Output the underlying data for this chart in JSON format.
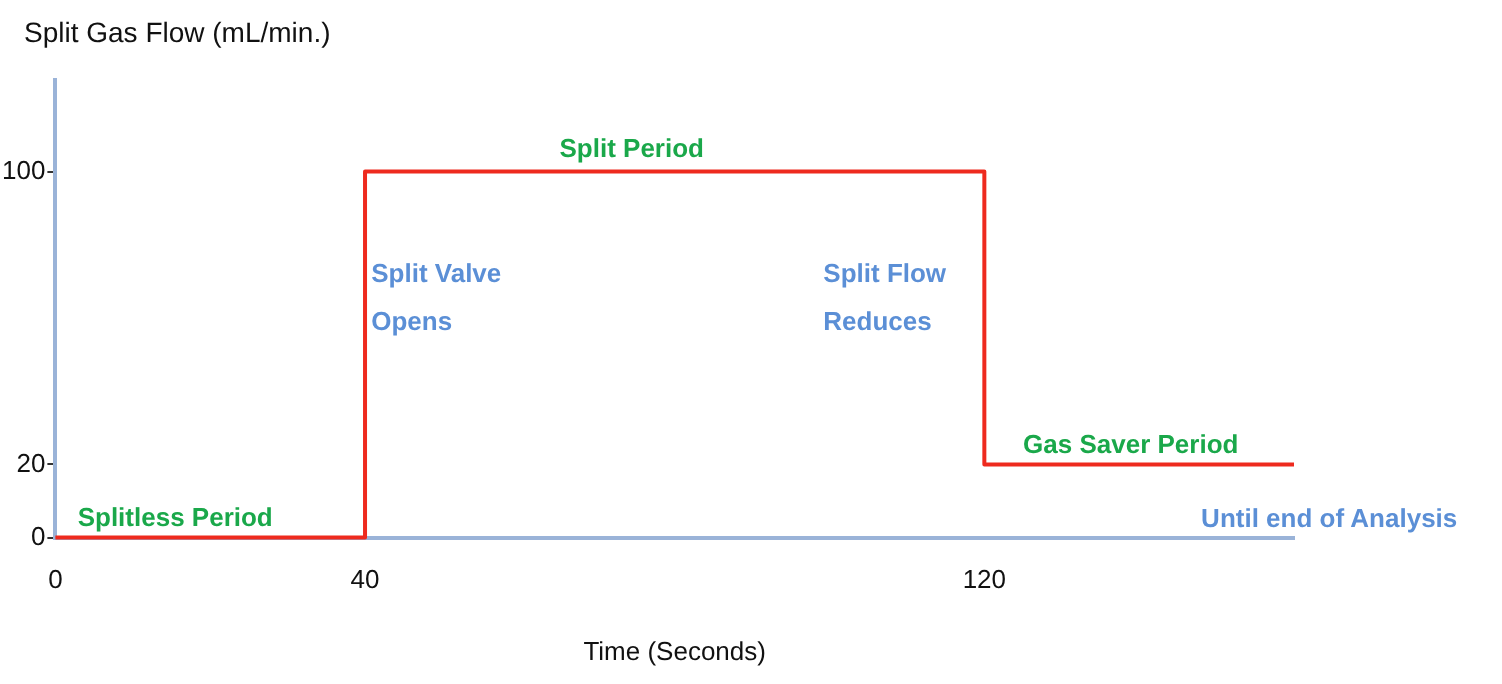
{
  "chart_data": {
    "type": "step",
    "ylabel": "Split Gas Flow (mL/min.)",
    "xlabel": "Time (Seconds)",
    "x": [
      0,
      40,
      120,
      160
    ],
    "values": [
      0,
      100,
      20,
      20
    ],
    "color": "#ee2a1e",
    "xlim": [
      0,
      160
    ],
    "xticks": [
      0,
      40,
      120
    ],
    "ylim": [
      0,
      125
    ],
    "yticks": [
      0,
      20,
      100
    ],
    "annotations": [
      "Splitless Period",
      "Split Period",
      {
        "text": "Gas Saver Period",
        "x": 125,
        "y": 20
      },
      "Split Valve\nOpens",
      "Split Flow\nReduces",
      "Until end of Analysis"
    ]
  }
}
